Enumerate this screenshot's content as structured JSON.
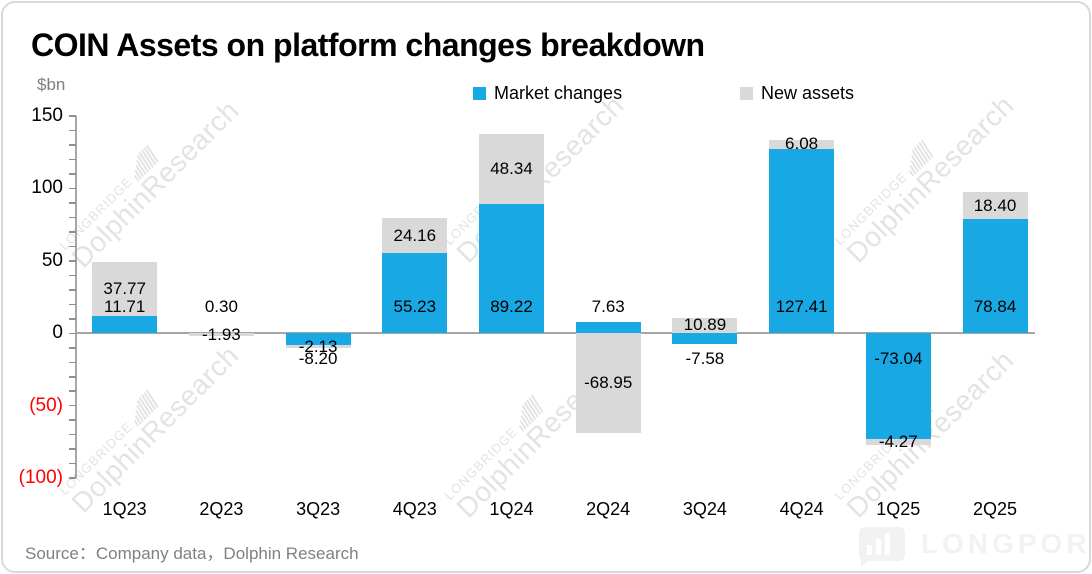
{
  "card": {
    "title": "COIN Assets on platform changes breakdown",
    "unit_label": "$bn",
    "source": "Source：Company data，Dolphin Research"
  },
  "legend": {
    "items": [
      {
        "label": "Market changes",
        "color": "#18a8e4"
      },
      {
        "label": "New assets",
        "color": "#d9d9d9"
      }
    ]
  },
  "watermark": {
    "brand": "LONGBRIDGE",
    "name": "DolphinResearch"
  },
  "footer_logo": {
    "text": "LONGPORT"
  },
  "chart_data": {
    "type": "bar",
    "stacked": true,
    "title": "COIN Assets on platform changes breakdown",
    "ylabel": "$bn",
    "xlabel": "",
    "ylim": [
      -100,
      150
    ],
    "gridlines": false,
    "legend_position": "top",
    "categories": [
      "1Q23",
      "2Q23",
      "3Q23",
      "4Q23",
      "1Q24",
      "2Q24",
      "3Q24",
      "4Q24",
      "1Q25",
      "2Q25"
    ],
    "series": [
      {
        "name": "Market changes",
        "color": "#18a8e4",
        "values": [
          11.71,
          0.3,
          -8.2,
          55.23,
          89.22,
          7.63,
          -7.58,
          127.41,
          -73.04,
          78.84
        ]
      },
      {
        "name": "New assets",
        "color": "#d9d9d9",
        "values": [
          37.77,
          -1.93,
          -2.13,
          24.16,
          48.34,
          -68.95,
          10.89,
          6.08,
          -4.27,
          18.4
        ]
      }
    ],
    "y_ticks": [
      {
        "label": "150",
        "value": 150,
        "negative": false
      },
      {
        "label": "100",
        "value": 100,
        "negative": false
      },
      {
        "label": "50",
        "value": 50,
        "negative": false
      },
      {
        "label": "0",
        "value": 0,
        "negative": false
      },
      {
        "label": "(50)",
        "value": -50,
        "negative": true
      },
      {
        "label": "(100)",
        "value": -100,
        "negative": true
      }
    ]
  }
}
